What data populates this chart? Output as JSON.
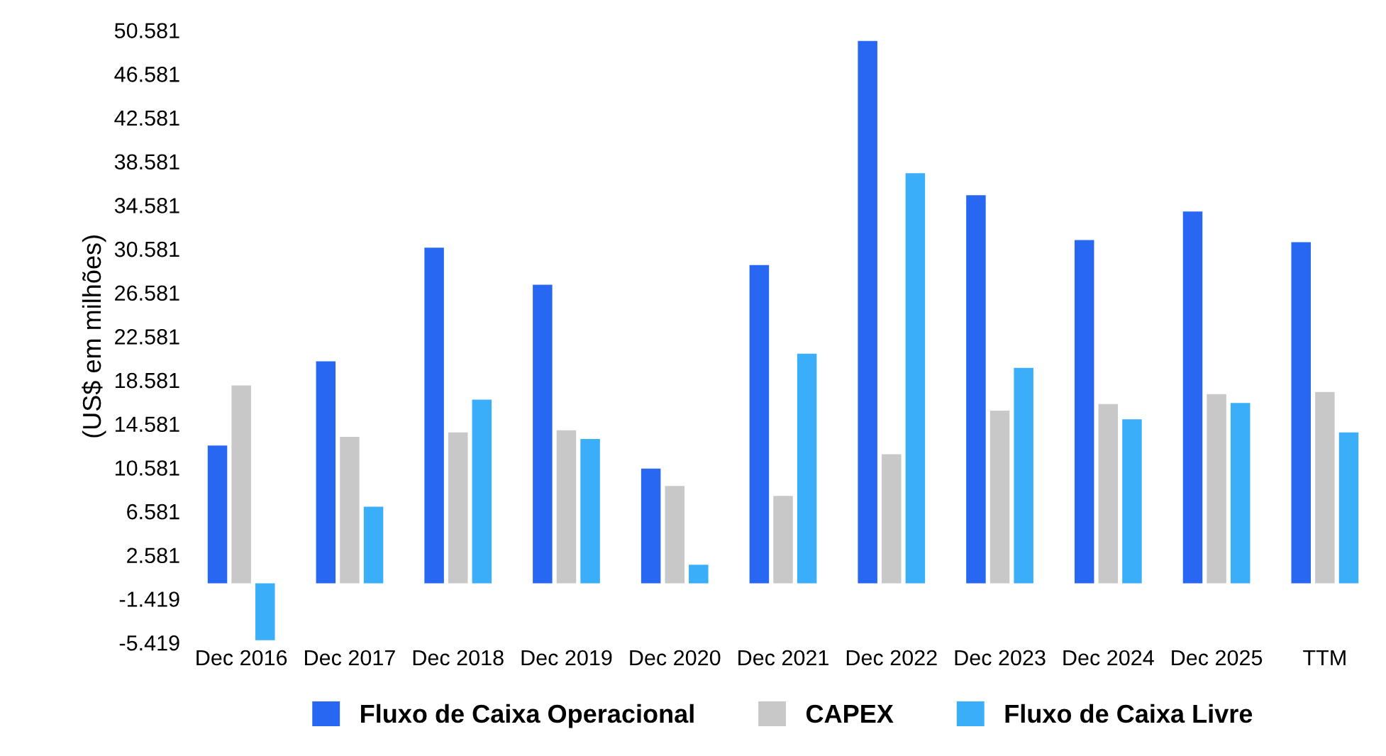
{
  "chart_data": {
    "type": "bar",
    "ylabel": "(US$ em milhões)",
    "categories": [
      "Dec 2016",
      "Dec 2017",
      "Dec 2018",
      "Dec 2019",
      "Dec 2020",
      "Dec 2021",
      "Dec 2022",
      "Dec 2023",
      "Dec 2024",
      "Dec 2025",
      "TTM"
    ],
    "series": [
      {
        "name": "Fluxo de Caixa Operacional",
        "color": "#2767f2",
        "values": [
          12.6,
          20.3,
          30.7,
          27.3,
          10.5,
          29.1,
          49.6,
          35.5,
          31.4,
          34.0,
          31.2
        ]
      },
      {
        "name": "CAPEX",
        "color": "#c8c8c8",
        "values": [
          18.1,
          13.4,
          13.8,
          14.0,
          8.9,
          8.0,
          11.8,
          15.8,
          16.4,
          17.3,
          17.5
        ]
      },
      {
        "name": "Fluxo de Caixa Livre",
        "color": "#3aaef8",
        "values": [
          -5.2,
          7.0,
          16.8,
          13.2,
          1.7,
          21.0,
          37.5,
          19.7,
          15.0,
          16.5,
          13.8
        ]
      }
    ],
    "ylim": [
      -5.419,
      50.581
    ],
    "yticks": [
      -5.419,
      -1.419,
      2.581,
      6.581,
      10.581,
      14.581,
      18.581,
      22.581,
      26.581,
      30.581,
      34.581,
      38.581,
      42.581,
      46.581,
      50.581
    ],
    "grid": false,
    "legend": "bottom"
  }
}
